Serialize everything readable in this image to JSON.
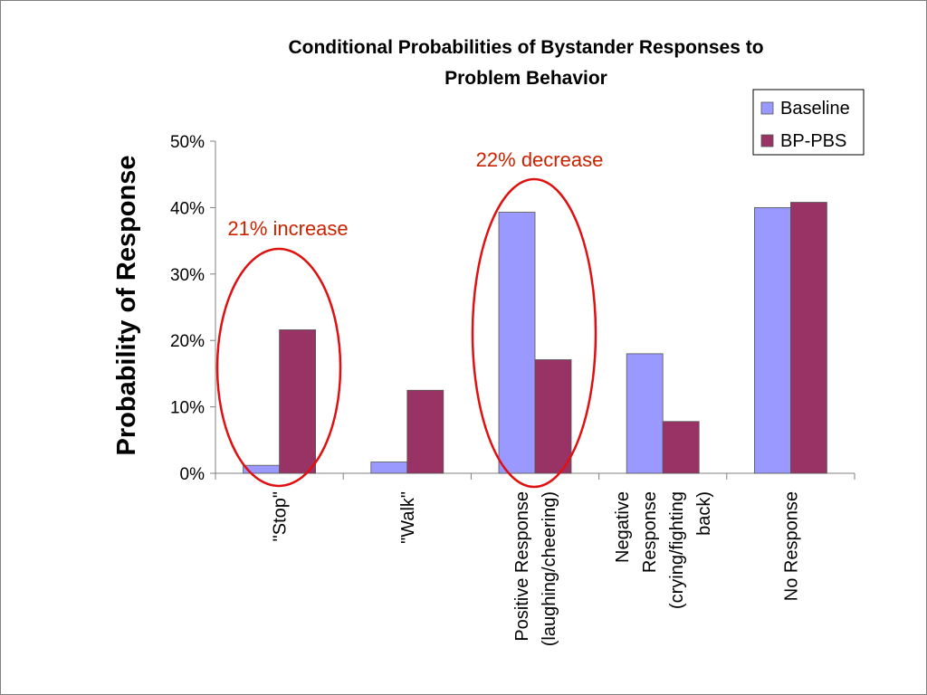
{
  "chart_data": {
    "type": "bar",
    "title_lines": [
      "Conditional Probabilities of Bystander Responses to",
      "Problem Behavior"
    ],
    "ylabel": "Probability of Response",
    "xlabel": "",
    "ylim": [
      0,
      50
    ],
    "yticks": [
      {
        "value": 0,
        "label": "0%"
      },
      {
        "value": 10,
        "label": "10%"
      },
      {
        "value": 20,
        "label": "20%"
      },
      {
        "value": 30,
        "label": "30%"
      },
      {
        "value": 40,
        "label": "40%"
      },
      {
        "value": 50,
        "label": "50%"
      }
    ],
    "categories": [
      {
        "label_lines": [
          "\"Stop\""
        ]
      },
      {
        "label_lines": [
          "\"Walk\""
        ]
      },
      {
        "label_lines": [
          "Positive Response",
          "(laughing/cheering)"
        ]
      },
      {
        "label_lines": [
          "Negative",
          "Response",
          "(crying/fighting",
          "back)"
        ]
      },
      {
        "label_lines": [
          "No Response"
        ]
      }
    ],
    "series": [
      {
        "name": "Baseline",
        "color": "#9999ff",
        "values": [
          1.2,
          1.7,
          39.3,
          18.0,
          40.0
        ]
      },
      {
        "name": "BP-PBS",
        "color": "#993366",
        "values": [
          21.6,
          12.5,
          17.1,
          7.8,
          40.8
        ]
      }
    ],
    "grid": false,
    "legend_position": "top-right",
    "annotations": [
      {
        "text": "21% increase",
        "category_index": 0,
        "color": "#cc2200"
      },
      {
        "text": "22% decrease",
        "category_index": 2,
        "color": "#cc2200"
      }
    ],
    "highlight_color": "#e01010"
  }
}
